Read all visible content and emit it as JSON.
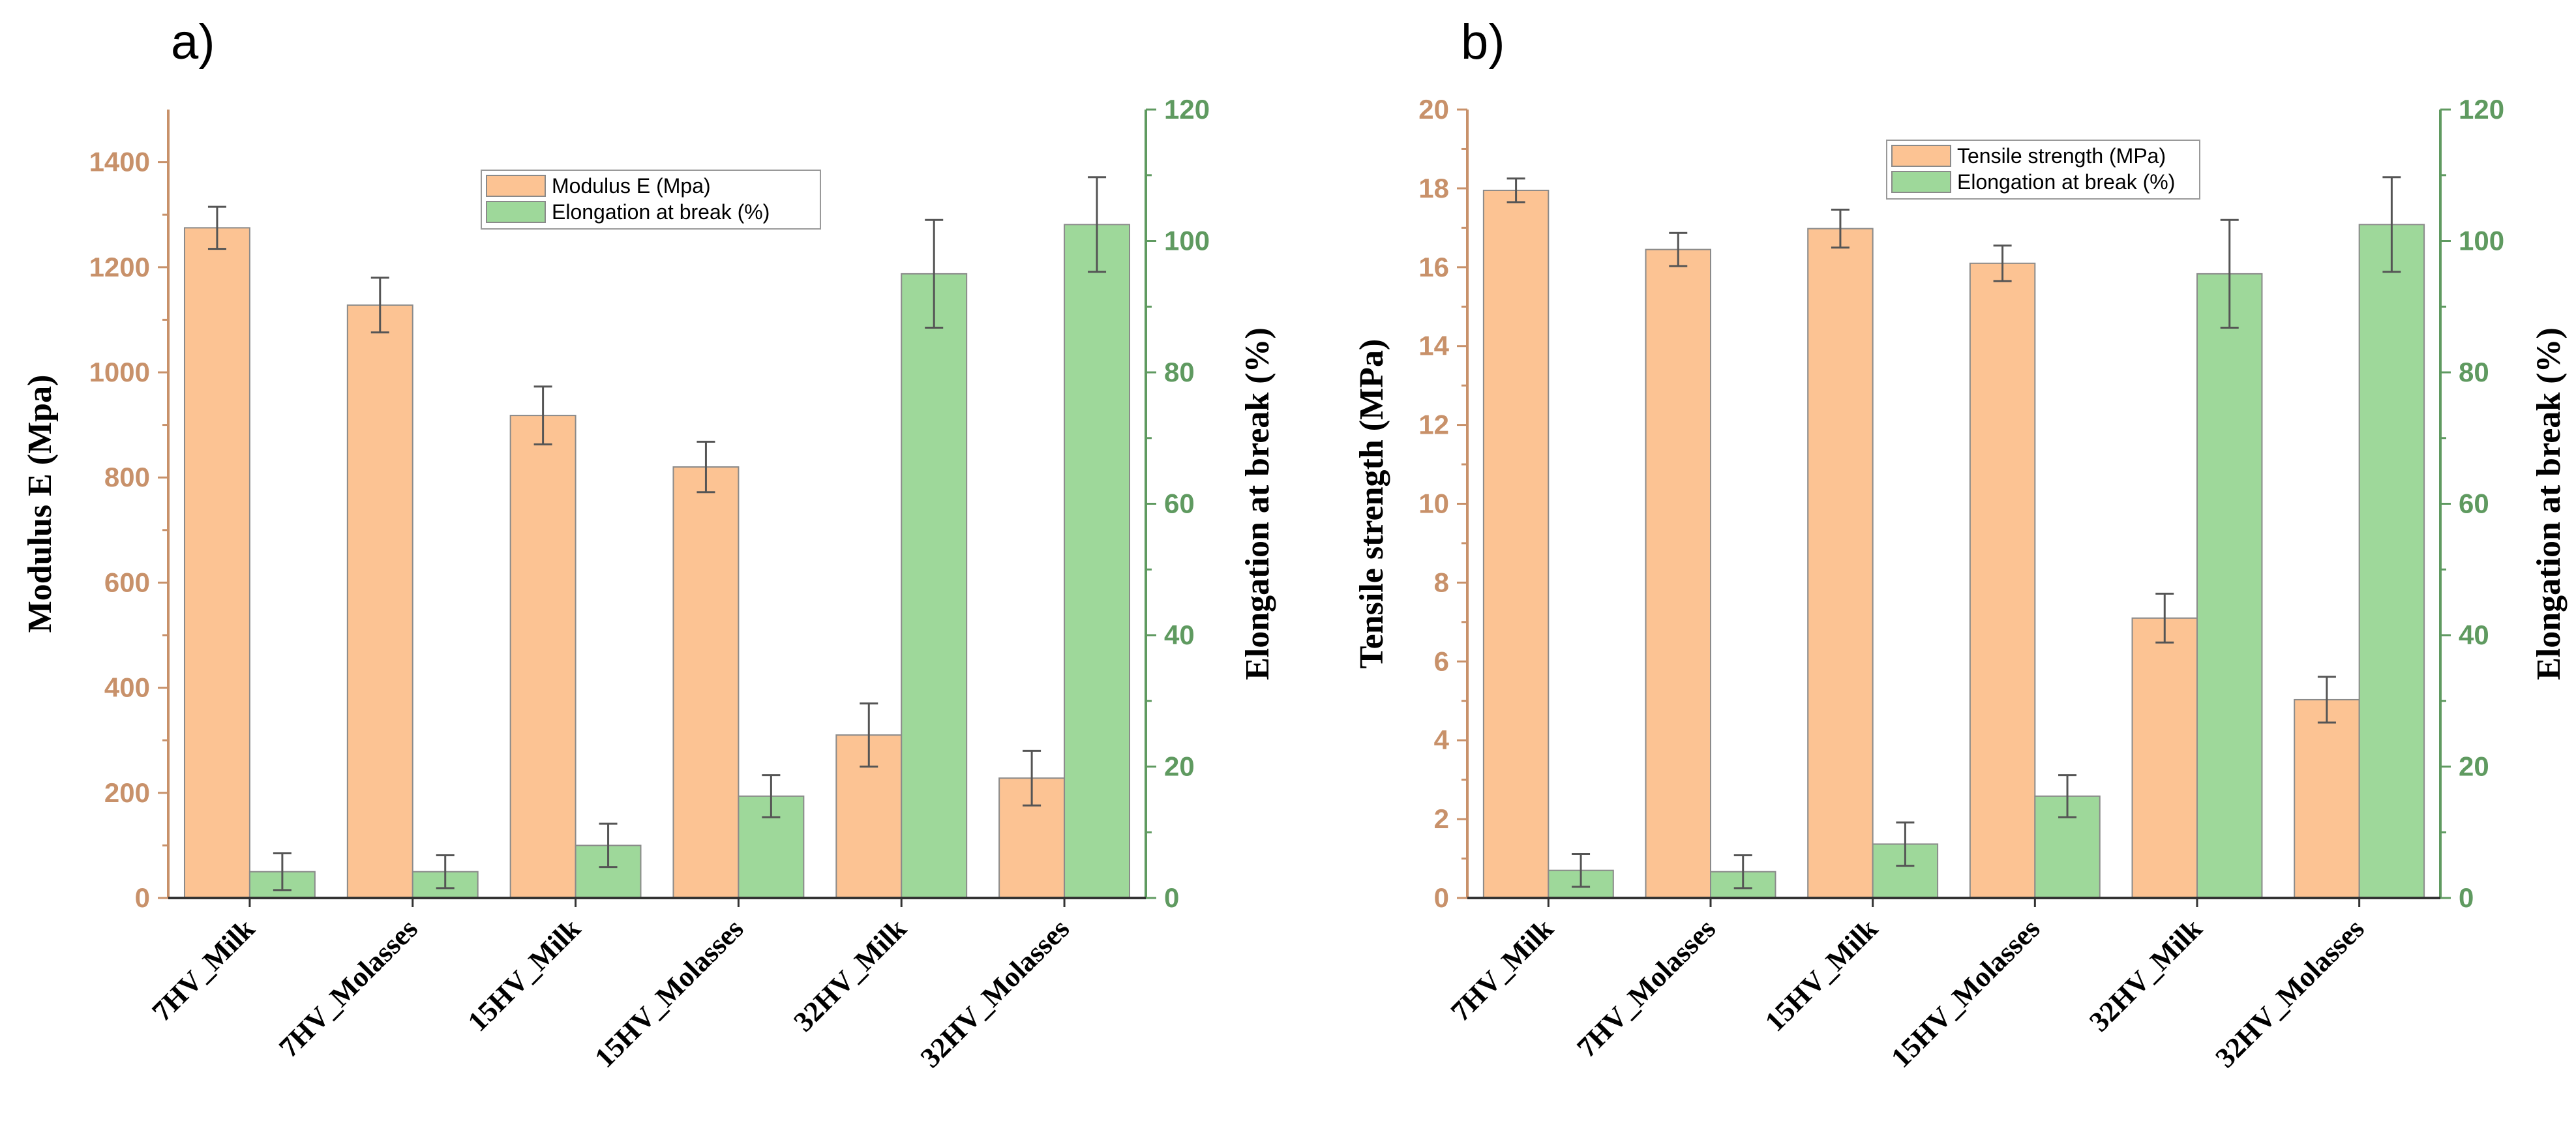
{
  "colors": {
    "primary_bar": "#fcc393",
    "secondary_bar": "#9ed89a",
    "left_axis": "#c8916a",
    "right_axis": "#5f9a60",
    "bar_stroke": "#8a8a8a",
    "error_bar": "#555555"
  },
  "chart_data": [
    {
      "type": "bar",
      "panel_label": "a)",
      "categories": [
        "7HV_Milk",
        "7HV_Molasses",
        "15HV_Milk",
        "15HV_Molasses",
        "32HV_Milk",
        "32HV_Molasses"
      ],
      "ylabel": "Modulus E (Mpa)",
      "y2label": "Elongation at break (%)",
      "ylim": [
        0,
        1500
      ],
      "y2lim": [
        0,
        120
      ],
      "yticks": [
        0,
        200,
        400,
        600,
        800,
        1000,
        1200,
        1400
      ],
      "y2ticks": [
        0,
        20,
        40,
        60,
        80,
        100,
        120
      ],
      "legend_position": "top-center",
      "grid": false,
      "series": [
        {
          "name": "Modulus E (Mpa)",
          "axis": "left",
          "values": [
            1275,
            1128,
            918,
            820,
            310,
            228
          ],
          "errors": [
            40,
            52,
            55,
            48,
            60,
            52
          ]
        },
        {
          "name": "Elongation at break (%)",
          "axis": "right",
          "values": [
            4,
            4,
            8,
            15.5,
            95,
            102.5
          ],
          "errors": [
            2.8,
            2.5,
            3.3,
            3.2,
            8.2,
            7.2
          ]
        }
      ]
    },
    {
      "type": "bar",
      "panel_label": "b)",
      "categories": [
        "7HV_Milk",
        "7HV_Molasses",
        "15HV_Milk",
        "15HV_Molasses",
        "32HV_Milk",
        "32HV_Molasses"
      ],
      "ylabel": "Tensile strength (MPa)",
      "y2label": "Elongation at break (%)",
      "ylim": [
        0,
        20
      ],
      "y2lim": [
        0,
        120
      ],
      "yticks": [
        0,
        2,
        4,
        6,
        8,
        10,
        12,
        14,
        16,
        18,
        20
      ],
      "y2ticks": [
        0,
        20,
        40,
        60,
        80,
        100,
        120
      ],
      "legend_position": "top-center",
      "grid": false,
      "series": [
        {
          "name": "Tensile strength (MPa)",
          "axis": "left",
          "values": [
            17.95,
            16.45,
            16.98,
            16.1,
            7.1,
            5.03
          ],
          "errors": [
            0.3,
            0.42,
            0.48,
            0.45,
            0.62,
            0.58
          ]
        },
        {
          "name": "Elongation at break (%)",
          "axis": "right",
          "values": [
            4.2,
            4,
            8.2,
            15.5,
            95,
            102.5
          ],
          "errors": [
            2.5,
            2.5,
            3.3,
            3.2,
            8.2,
            7.2
          ]
        }
      ]
    }
  ]
}
